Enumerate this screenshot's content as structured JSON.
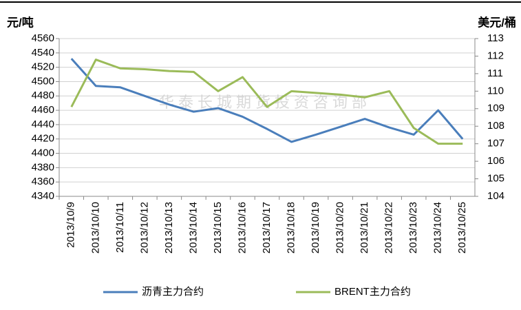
{
  "chart_data": {
    "type": "line",
    "y_label": "元/吨",
    "y2_label": "美元/桶",
    "annotation": "华泰长城期货投资咨询部",
    "categories": [
      "2013/10/9",
      "2013/10/10",
      "2013/10/11",
      "2013/10/12",
      "2013/10/13",
      "2013/10/14",
      "2013/10/15",
      "2013/10/16",
      "2013/10/17",
      "2013/10/18",
      "2013/10/19",
      "2013/10/20",
      "2013/10/21",
      "2013/10/22",
      "2013/10/23",
      "2013/10/24",
      "2013/10/25"
    ],
    "series": [
      {
        "name": "沥青主力合约",
        "color": "#4a7ebb",
        "axis": "y",
        "values": [
          4532,
          4494,
          4492,
          4480,
          4468,
          4458,
          4463,
          4451,
          4434,
          4416,
          4426,
          4437,
          4448,
          4436,
          4426,
          4460,
          4420
        ]
      },
      {
        "name": "BRENT主力合约",
        "color": "#9bbb59",
        "axis": "y2",
        "values": [
          109.1,
          111.8,
          111.3,
          111.25,
          111.15,
          111.1,
          110.0,
          110.8,
          109.1,
          110.0,
          109.9,
          109.8,
          109.65,
          110.0,
          107.9,
          107.0,
          107.0
        ]
      }
    ],
    "ylim": [
      4340,
      4560
    ],
    "yticks": [
      4340,
      4360,
      4380,
      4400,
      4420,
      4440,
      4460,
      4480,
      4500,
      4520,
      4540,
      4560
    ],
    "y2lim": [
      104,
      113
    ],
    "y2ticks": [
      104,
      105,
      106,
      107,
      108,
      109,
      110,
      111,
      112,
      113
    ],
    "grid": true,
    "legend": "bottom"
  }
}
